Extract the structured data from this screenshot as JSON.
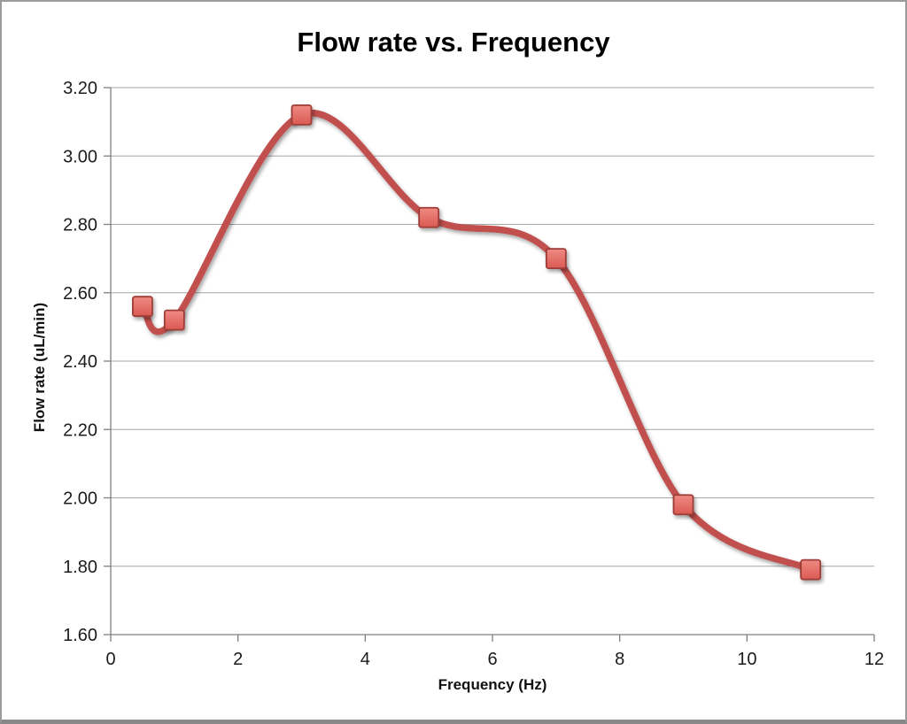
{
  "window": {
    "background": "#ffffff",
    "frame_border_color": "#9b9b9b"
  },
  "chart_data": {
    "type": "line",
    "title": "Flow rate vs. Frequency",
    "xlabel": "Frequency (Hz)",
    "ylabel": "Flow rate (uL/min)",
    "smooth": true,
    "grid": true,
    "legend_position": "none",
    "x": [
      0.5,
      1,
      3,
      5,
      7,
      9,
      11
    ],
    "y": [
      2.56,
      2.52,
      3.12,
      2.82,
      2.7,
      1.98,
      1.79
    ],
    "xlim": [
      0,
      12
    ],
    "ylim": [
      1.6,
      3.2
    ],
    "x_ticks": [
      "0",
      "2",
      "4",
      "6",
      "8",
      "10",
      "12"
    ],
    "y_ticks": [
      "3.20",
      "3.00",
      "2.80",
      "2.60",
      "2.40",
      "2.20",
      "2.00",
      "1.80",
      "1.60"
    ],
    "colors": {
      "line": "#c0504d",
      "marker_fill_top": "#ef8a83",
      "marker_fill_bottom": "#da5a53",
      "marker_border": "#9e3c37",
      "gridline": "#a6a6a6",
      "axis": "#808080",
      "tick_text": "#1c1c1c"
    }
  }
}
